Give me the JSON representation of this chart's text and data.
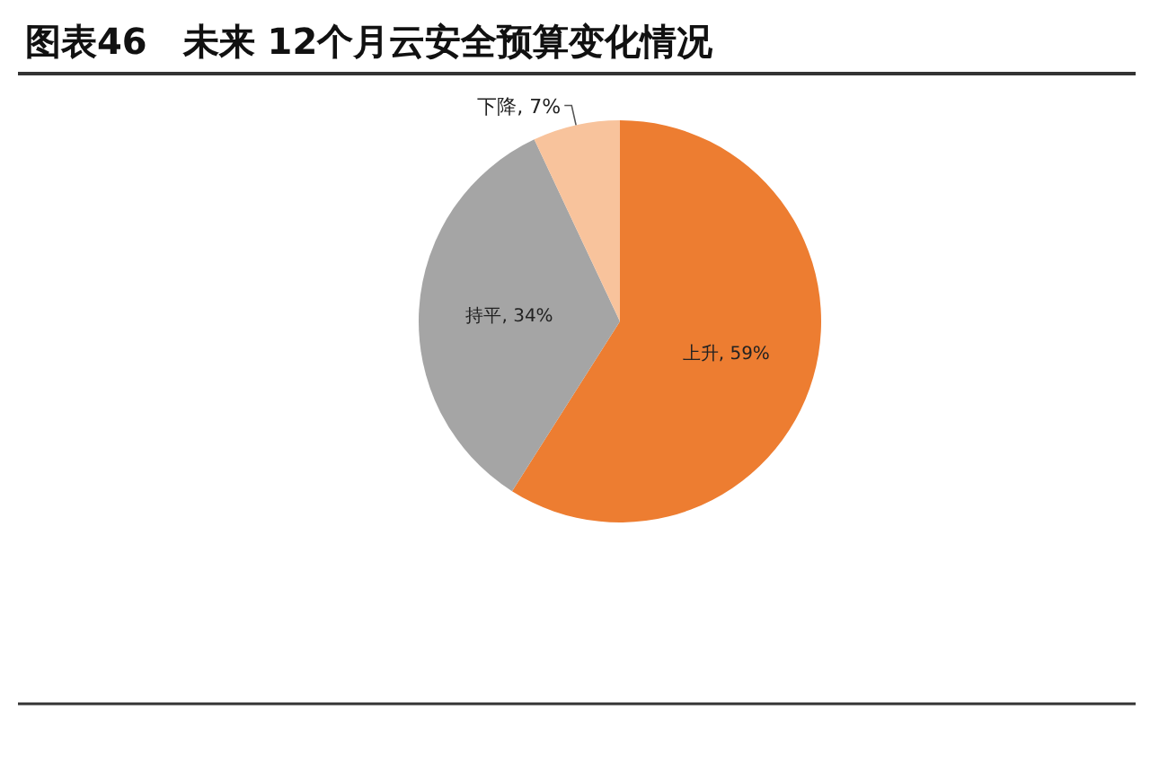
{
  "chart_data": {
    "type": "pie",
    "title": "图表46　未来 12个月云安全预算变化情况",
    "categories": [
      "上升",
      "持平",
      "下降"
    ],
    "values": [
      59,
      34,
      7
    ],
    "value_labels": [
      "59%",
      "34%",
      "7%"
    ],
    "colors": [
      "#ed7d31",
      "#a5a5a5",
      "#f8c39c"
    ]
  }
}
